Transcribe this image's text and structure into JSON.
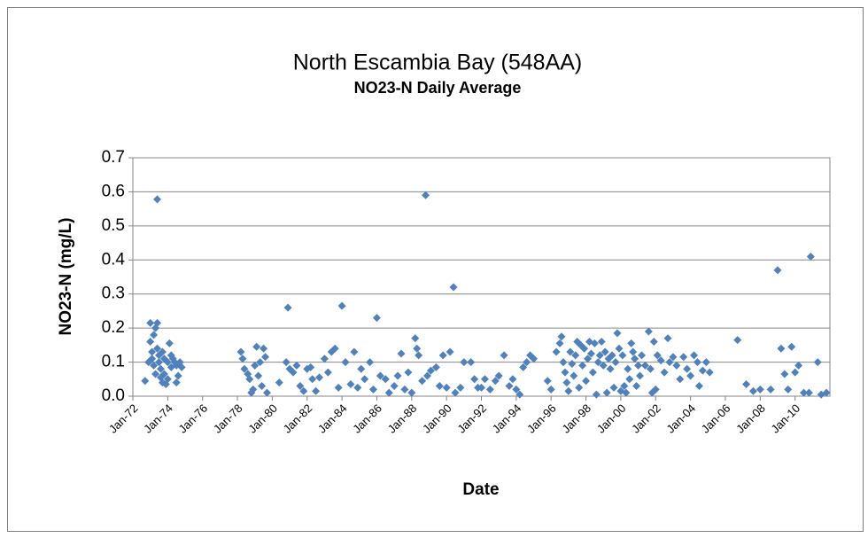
{
  "chart_data": {
    "type": "scatter",
    "title": "North Escambia Bay (548AA)",
    "subtitle": "NO23-N Daily Average",
    "x_label": "Date",
    "y_label": "NO23-N (mg/L)",
    "color": "#4f81bd",
    "grid": true,
    "xlim": [
      1972,
      2012
    ],
    "ylim": [
      0,
      0.7
    ],
    "xticks": [
      {
        "value": 1972,
        "label": "Jan-72"
      },
      {
        "value": 1974,
        "label": "Jan-74"
      },
      {
        "value": 1976,
        "label": "Jan-76"
      },
      {
        "value": 1978,
        "label": "Jan-78"
      },
      {
        "value": 1980,
        "label": "Jan-80"
      },
      {
        "value": 1982,
        "label": "Jan-82"
      },
      {
        "value": 1984,
        "label": "Jan-84"
      },
      {
        "value": 1986,
        "label": "Jan-86"
      },
      {
        "value": 1988,
        "label": "Jan-88"
      },
      {
        "value": 1990,
        "label": "Jan-90"
      },
      {
        "value": 1992,
        "label": "Jan-92"
      },
      {
        "value": 1994,
        "label": "Jan-94"
      },
      {
        "value": 1996,
        "label": "Jan-96"
      },
      {
        "value": 1998,
        "label": "Jan-98"
      },
      {
        "value": 2000,
        "label": "Jan-00"
      },
      {
        "value": 2002,
        "label": "Jan-02"
      },
      {
        "value": 2004,
        "label": "Jan-04"
      },
      {
        "value": 2006,
        "label": "Jan-06"
      },
      {
        "value": 2008,
        "label": "Jan-08"
      },
      {
        "value": 2010,
        "label": "Jan-10"
      }
    ],
    "yticks": [
      {
        "value": 0,
        "label": "0.0"
      },
      0.1,
      0.2,
      0.3,
      0.4,
      0.5,
      0.6,
      0.7
    ],
    "x": [
      1972.7,
      1972.9,
      1973.0,
      1973.0,
      1973.1,
      1973.1,
      1973.2,
      1973.2,
      1973.3,
      1973.3,
      1973.4,
      1973.4,
      1973.4,
      1973.5,
      1973.5,
      1973.6,
      1973.6,
      1973.7,
      1973.7,
      1973.8,
      1973.8,
      1973.9,
      1974.0,
      1974.0,
      1974.1,
      1974.2,
      1974.2,
      1974.3,
      1974.4,
      1974.5,
      1974.5,
      1974.6,
      1974.7,
      1974.8,
      1978.2,
      1978.3,
      1978.4,
      1978.6,
      1978.7,
      1978.8,
      1978.9,
      1979.0,
      1979.1,
      1979.2,
      1979.3,
      1979.4,
      1979.5,
      1979.6,
      1979.7,
      1980.4,
      1980.8,
      1980.9,
      1981.0,
      1981.2,
      1981.4,
      1981.6,
      1981.8,
      1982.0,
      1982.2,
      1982.3,
      1982.5,
      1982.7,
      1983.0,
      1983.2,
      1983.4,
      1983.6,
      1983.8,
      1984.0,
      1984.2,
      1984.5,
      1984.7,
      1984.9,
      1985.1,
      1985.3,
      1985.6,
      1985.8,
      1986.0,
      1986.2,
      1986.5,
      1986.7,
      1987.0,
      1987.2,
      1987.4,
      1987.6,
      1987.8,
      1988.0,
      1988.2,
      1988.3,
      1988.4,
      1988.6,
      1988.8,
      1988.9,
      1989.1,
      1989.4,
      1989.6,
      1989.8,
      1990.0,
      1990.2,
      1990.4,
      1990.5,
      1990.8,
      1991.0,
      1991.4,
      1991.6,
      1991.8,
      1992.0,
      1992.2,
      1992.5,
      1992.8,
      1993.0,
      1993.3,
      1993.6,
      1993.8,
      1994.0,
      1994.2,
      1994.4,
      1994.6,
      1994.8,
      1995.0,
      1995.8,
      1996.0,
      1996.3,
      1996.5,
      1996.6,
      1996.7,
      1996.8,
      1996.9,
      1997.0,
      1997.1,
      1997.2,
      1997.3,
      1997.4,
      1997.5,
      1997.6,
      1997.7,
      1997.8,
      1997.9,
      1998.0,
      1998.1,
      1998.2,
      1998.3,
      1998.4,
      1998.5,
      1998.6,
      1998.7,
      1998.8,
      1998.9,
      1999.0,
      1999.1,
      1999.2,
      1999.3,
      1999.4,
      1999.5,
      1999.6,
      1999.7,
      1999.8,
      1999.9,
      2000.0,
      2000.1,
      2000.2,
      2000.3,
      2000.4,
      2000.5,
      2000.6,
      2000.7,
      2000.8,
      2000.9,
      2001.0,
      2001.1,
      2001.2,
      2001.4,
      2001.6,
      2001.7,
      2001.8,
      2001.9,
      2002.0,
      2002.1,
      2002.3,
      2002.5,
      2002.7,
      2002.8,
      2003.0,
      2003.2,
      2003.4,
      2003.6,
      2003.8,
      2004.0,
      2004.2,
      2004.4,
      2004.5,
      2004.7,
      2004.9,
      2005.1,
      2006.7,
      2007.2,
      2007.6,
      2008.0,
      2008.6,
      2009.0,
      2009.2,
      2009.4,
      2009.6,
      2009.8,
      2010.0,
      2010.2,
      2010.5,
      2010.8,
      2010.9,
      2011.3,
      2011.5,
      2011.8
    ],
    "values": [
      0.045,
      0.1,
      0.215,
      0.16,
      0.13,
      0.11,
      0.09,
      0.18,
      0.2,
      0.065,
      0.578,
      0.215,
      0.14,
      0.12,
      0.1,
      0.055,
      0.08,
      0.13,
      0.04,
      0.11,
      0.065,
      0.035,
      0.1,
      0.05,
      0.155,
      0.12,
      0.085,
      0.11,
      0.1,
      0.09,
      0.04,
      0.06,
      0.1,
      0.085,
      0.13,
      0.11,
      0.08,
      0.065,
      0.05,
      0.01,
      0.02,
      0.09,
      0.145,
      0.06,
      0.1,
      0.03,
      0.14,
      0.115,
      0.01,
      0.04,
      0.1,
      0.26,
      0.08,
      0.07,
      0.09,
      0.03,
      0.015,
      0.08,
      0.085,
      0.05,
      0.015,
      0.055,
      0.11,
      0.07,
      0.13,
      0.14,
      0.025,
      0.265,
      0.1,
      0.035,
      0.13,
      0.025,
      0.08,
      0.05,
      0.1,
      0.02,
      0.23,
      0.06,
      0.05,
      0.01,
      0.03,
      0.06,
      0.125,
      0.02,
      0.07,
      0.01,
      0.17,
      0.14,
      0.12,
      0.045,
      0.59,
      0.06,
      0.075,
      0.085,
      0.03,
      0.12,
      0.025,
      0.13,
      0.32,
      0.01,
      0.025,
      0.1,
      0.1,
      0.05,
      0.025,
      0.025,
      0.05,
      0.02,
      0.045,
      0.06,
      0.12,
      0.03,
      0.05,
      0.02,
      0.005,
      0.085,
      0.1,
      0.12,
      0.11,
      0.045,
      0.02,
      0.13,
      0.155,
      0.175,
      0.1,
      0.07,
      0.04,
      0.015,
      0.13,
      0.095,
      0.06,
      0.12,
      0.16,
      0.025,
      0.15,
      0.09,
      0.14,
      0.045,
      0.11,
      0.16,
      0.125,
      0.07,
      0.155,
      0.005,
      0.1,
      0.12,
      0.16,
      0.09,
      0.13,
      0.01,
      0.11,
      0.08,
      0.12,
      0.025,
      0.1,
      0.185,
      0.14,
      0.015,
      0.12,
      0.03,
      0.01,
      0.08,
      0.05,
      0.155,
      0.13,
      0.11,
      0.03,
      0.09,
      0.06,
      0.12,
      0.09,
      0.19,
      0.08,
      0.01,
      0.16,
      0.02,
      0.12,
      0.105,
      0.07,
      0.17,
      0.1,
      0.115,
      0.09,
      0.05,
      0.115,
      0.08,
      0.06,
      0.12,
      0.1,
      0.03,
      0.075,
      0.1,
      0.07,
      0.165,
      0.035,
      0.015,
      0.02,
      0.02,
      0.37,
      0.14,
      0.065,
      0.02,
      0.145,
      0.07,
      0.09,
      0.01,
      0.01,
      0.41,
      0.1,
      0.005,
      0.01
    ]
  }
}
